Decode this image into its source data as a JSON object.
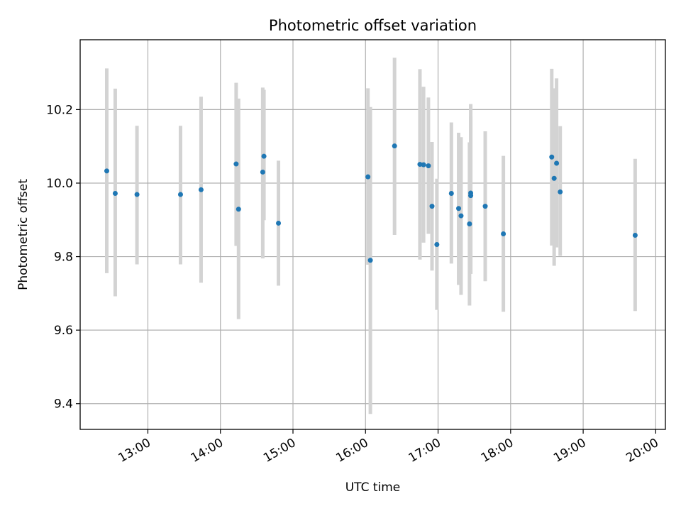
{
  "chart_data": {
    "type": "scatter",
    "title": "Photometric offset variation",
    "xlabel": "UTC time",
    "ylabel": "Photometric offset",
    "x_unit": "hours (UTC)",
    "xlim": [
      "12:04",
      "20:08"
    ],
    "ylim": [
      9.33,
      10.39
    ],
    "grid": true,
    "x_ticks": [
      "13:00",
      "14:00",
      "15:00",
      "16:00",
      "17:00",
      "18:00",
      "19:00",
      "20:00"
    ],
    "y_ticks": [
      "9.4",
      "9.6",
      "9.8",
      "10.0",
      "10.2"
    ],
    "marker_color": "#1f77b4",
    "errorbar_color": "#d3d3d3",
    "points": [
      {
        "t": "12:26",
        "y": 10.033,
        "lo": 9.755,
        "hi": 10.312
      },
      {
        "t": "12:33",
        "y": 9.972,
        "lo": 9.692,
        "hi": 10.257
      },
      {
        "t": "12:51",
        "y": 9.969,
        "lo": 9.779,
        "hi": 10.156
      },
      {
        "t": "13:27",
        "y": 9.969,
        "lo": 9.779,
        "hi": 10.156
      },
      {
        "t": "13:44",
        "y": 9.982,
        "lo": 9.729,
        "hi": 10.235
      },
      {
        "t": "14:13",
        "y": 10.052,
        "lo": 9.829,
        "hi": 10.273
      },
      {
        "t": "14:15",
        "y": 9.929,
        "lo": 9.63,
        "hi": 10.23
      },
      {
        "t": "14:35",
        "y": 10.03,
        "lo": 9.795,
        "hi": 10.26
      },
      {
        "t": "14:36",
        "y": 10.073,
        "lo": 9.899,
        "hi": 10.254
      },
      {
        "t": "14:48",
        "y": 9.891,
        "lo": 9.721,
        "hi": 10.061
      },
      {
        "t": "16:02",
        "y": 10.017,
        "lo": 9.778,
        "hi": 10.258
      },
      {
        "t": "16:04",
        "y": 9.79,
        "lo": 9.372,
        "hi": 10.207
      },
      {
        "t": "16:24",
        "y": 10.101,
        "lo": 9.859,
        "hi": 10.341
      },
      {
        "t": "16:45",
        "y": 10.051,
        "lo": 9.792,
        "hi": 10.31
      },
      {
        "t": "16:48",
        "y": 10.05,
        "lo": 9.838,
        "hi": 10.262
      },
      {
        "t": "16:52",
        "y": 10.047,
        "lo": 9.862,
        "hi": 10.233
      },
      {
        "t": "16:55",
        "y": 9.937,
        "lo": 9.762,
        "hi": 10.112
      },
      {
        "t": "16:59",
        "y": 9.833,
        "lo": 9.655,
        "hi": 10.012
      },
      {
        "t": "17:11",
        "y": 9.972,
        "lo": 9.781,
        "hi": 10.165
      },
      {
        "t": "17:17",
        "y": 9.931,
        "lo": 9.723,
        "hi": 10.137
      },
      {
        "t": "17:19",
        "y": 9.911,
        "lo": 9.696,
        "hi": 10.125
      },
      {
        "t": "17:26",
        "y": 9.889,
        "lo": 9.667,
        "hi": 10.111
      },
      {
        "t": "17:27",
        "y": 9.973,
        "lo": 9.753,
        "hi": 10.215
      },
      {
        "t": "17:27",
        "y": 9.966,
        "lo": 9.753,
        "hi": 10.18
      },
      {
        "t": "17:39",
        "y": 9.937,
        "lo": 9.733,
        "hi": 10.141
      },
      {
        "t": "17:54",
        "y": 9.862,
        "lo": 9.65,
        "hi": 10.074
      },
      {
        "t": "18:34",
        "y": 10.071,
        "lo": 9.83,
        "hi": 10.311
      },
      {
        "t": "18:36",
        "y": 10.013,
        "lo": 9.775,
        "hi": 10.258
      },
      {
        "t": "18:38",
        "y": 10.054,
        "lo": 9.825,
        "hi": 10.285
      },
      {
        "t": "18:41",
        "y": 9.976,
        "lo": 9.802,
        "hi": 10.155
      },
      {
        "t": "19:43",
        "y": 9.858,
        "lo": 9.652,
        "hi": 10.066
      }
    ]
  }
}
